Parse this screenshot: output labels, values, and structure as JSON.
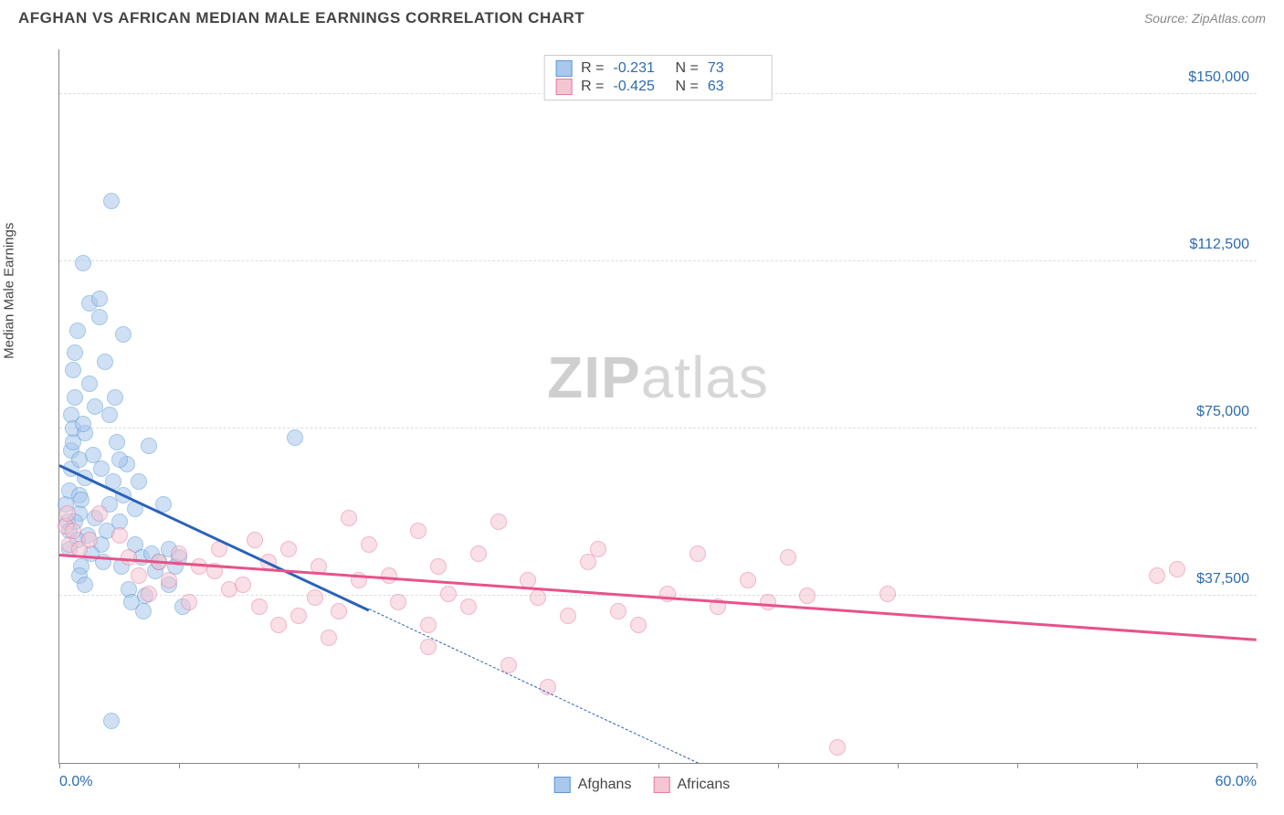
{
  "title": "AFGHAN VS AFRICAN MEDIAN MALE EARNINGS CORRELATION CHART",
  "source": "Source: ZipAtlas.com",
  "ylabel": "Median Male Earnings",
  "watermark_bold": "ZIP",
  "watermark_rest": "atlas",
  "chart": {
    "type": "scatter",
    "xlim": [
      0,
      60
    ],
    "ylim": [
      0,
      160000
    ],
    "x_unit": "%",
    "y_unit": "$",
    "background_color": "#ffffff",
    "grid_color": "#dddddd",
    "grid_dash": true,
    "axis_color": "#888888",
    "ytick_values": [
      37500,
      75000,
      112500,
      150000
    ],
    "ytick_labels": [
      "$37,500",
      "$75,000",
      "$112,500",
      "$150,000"
    ],
    "ytick_color": "#2b6cb0",
    "ytick_fontsize": 16,
    "xtick_values": [
      0,
      6,
      12,
      18,
      24,
      30,
      36,
      42,
      48,
      54,
      60
    ],
    "xaxis_labels": [
      {
        "value": 0,
        "text": "0.0%"
      },
      {
        "value": 60,
        "text": "60.0%"
      }
    ],
    "xaxis_label_color": "#2b6cb0",
    "marker_radius": 9,
    "marker_opacity": 0.55,
    "marker_border_width": 1.5
  },
  "series": [
    {
      "name": "Afghans",
      "fill_color": "#a9c8ec",
      "stroke_color": "#5b9bd5",
      "trend_color": "#2a62b8",
      "trend_width": 3,
      "trend_dash_after_x": 15.5,
      "R": "-0.231",
      "N": "73",
      "trend": {
        "x1": 0,
        "y1": 67000,
        "x2": 32,
        "y2": 0
      },
      "points": [
        [
          0.3,
          58000
        ],
        [
          0.4,
          54000
        ],
        [
          0.5,
          52000
        ],
        [
          0.5,
          61000
        ],
        [
          0.6,
          66000
        ],
        [
          0.6,
          70000
        ],
        [
          0.6,
          78000
        ],
        [
          0.7,
          72000
        ],
        [
          0.7,
          75000
        ],
        [
          0.8,
          82000
        ],
        [
          0.8,
          92000
        ],
        [
          0.9,
          97000
        ],
        [
          1.0,
          68000
        ],
        [
          1.0,
          60000
        ],
        [
          1.0,
          56000
        ],
        [
          1.1,
          59000
        ],
        [
          1.2,
          112000
        ],
        [
          1.3,
          64000
        ],
        [
          1.3,
          74000
        ],
        [
          1.5,
          103000
        ],
        [
          1.5,
          85000
        ],
        [
          1.7,
          69000
        ],
        [
          1.8,
          55000
        ],
        [
          2.0,
          100000
        ],
        [
          2.0,
          104000
        ],
        [
          2.1,
          49000
        ],
        [
          2.2,
          45000
        ],
        [
          2.3,
          90000
        ],
        [
          2.5,
          78000
        ],
        [
          2.5,
          58000
        ],
        [
          2.6,
          9500
        ],
        [
          2.6,
          126000
        ],
        [
          2.7,
          63000
        ],
        [
          2.8,
          82000
        ],
        [
          2.9,
          72000
        ],
        [
          3.0,
          54000
        ],
        [
          3.1,
          44000
        ],
        [
          3.2,
          96000
        ],
        [
          3.2,
          60000
        ],
        [
          3.4,
          67000
        ],
        [
          3.5,
          39000
        ],
        [
          3.6,
          36000
        ],
        [
          3.8,
          49000
        ],
        [
          3.8,
          57000
        ],
        [
          4.0,
          63000
        ],
        [
          4.1,
          46000
        ],
        [
          4.3,
          37500
        ],
        [
          4.5,
          71000
        ],
        [
          4.6,
          47000
        ],
        [
          4.8,
          43000
        ],
        [
          5.0,
          45000
        ],
        [
          5.2,
          58000
        ],
        [
          5.5,
          48000
        ],
        [
          5.8,
          44000
        ],
        [
          6.0,
          46000
        ],
        [
          6.2,
          35000
        ],
        [
          11.8,
          73000
        ],
        [
          1.4,
          51000
        ],
        [
          1.6,
          47000
        ],
        [
          0.9,
          50000
        ],
        [
          1.1,
          44000
        ],
        [
          1.8,
          80000
        ],
        [
          2.1,
          66000
        ],
        [
          2.4,
          52000
        ],
        [
          1.2,
          76000
        ],
        [
          0.7,
          88000
        ],
        [
          4.2,
          34000
        ],
        [
          1.0,
          42000
        ],
        [
          1.3,
          40000
        ],
        [
          0.5,
          48000
        ],
        [
          0.8,
          54000
        ],
        [
          3.0,
          68000
        ],
        [
          5.5,
          40000
        ]
      ]
    },
    {
      "name": "Africans",
      "fill_color": "#f5c5d2",
      "stroke_color": "#e87ba0",
      "trend_color": "#e8528a",
      "trend_width": 3,
      "R": "-0.425",
      "N": "63",
      "trend": {
        "x1": 0,
        "y1": 47000,
        "x2": 60,
        "y2": 28000
      },
      "points": [
        [
          0.3,
          53000
        ],
        [
          0.4,
          56000
        ],
        [
          0.5,
          49000
        ],
        [
          0.7,
          52000
        ],
        [
          1.0,
          48000
        ],
        [
          1.5,
          50000
        ],
        [
          2.0,
          56000
        ],
        [
          3.0,
          51000
        ],
        [
          3.5,
          46000
        ],
        [
          4.0,
          42000
        ],
        [
          4.5,
          38000
        ],
        [
          5.0,
          45000
        ],
        [
          5.5,
          41000
        ],
        [
          6.0,
          47000
        ],
        [
          6.5,
          36000
        ],
        [
          7.0,
          44000
        ],
        [
          7.8,
          43000
        ],
        [
          8.5,
          39000
        ],
        [
          9.2,
          40000
        ],
        [
          10.0,
          35000
        ],
        [
          10.5,
          45000
        ],
        [
          11.0,
          31000
        ],
        [
          11.5,
          48000
        ],
        [
          12.0,
          33000
        ],
        [
          12.8,
          37000
        ],
        [
          13.5,
          28000
        ],
        [
          14.0,
          34000
        ],
        [
          14.5,
          55000
        ],
        [
          15.0,
          41000
        ],
        [
          15.5,
          49000
        ],
        [
          16.5,
          42000
        ],
        [
          17.0,
          36000
        ],
        [
          18.0,
          52000
        ],
        [
          18.5,
          26000
        ],
        [
          19.0,
          44000
        ],
        [
          19.5,
          38000
        ],
        [
          20.5,
          35000
        ],
        [
          21.0,
          47000
        ],
        [
          22.0,
          54000
        ],
        [
          22.5,
          22000
        ],
        [
          23.5,
          41000
        ],
        [
          24.0,
          37000
        ],
        [
          24.5,
          17000
        ],
        [
          25.5,
          33000
        ],
        [
          26.5,
          45000
        ],
        [
          27.0,
          48000
        ],
        [
          28.0,
          34000
        ],
        [
          29.0,
          31000
        ],
        [
          30.5,
          38000
        ],
        [
          32.0,
          47000
        ],
        [
          33.0,
          35000
        ],
        [
          34.5,
          41000
        ],
        [
          35.5,
          36000
        ],
        [
          36.5,
          46000
        ],
        [
          37.5,
          37500
        ],
        [
          39.0,
          3500
        ],
        [
          41.5,
          38000
        ],
        [
          55.0,
          42000
        ],
        [
          56.0,
          43500
        ],
        [
          18.5,
          31000
        ],
        [
          13.0,
          44000
        ],
        [
          9.8,
          50000
        ],
        [
          8.0,
          48000
        ]
      ]
    }
  ],
  "legend_top": {
    "R_label": "R =",
    "N_label": "N ="
  },
  "legend_bottom_labels": [
    "Afghans",
    "Africans"
  ]
}
